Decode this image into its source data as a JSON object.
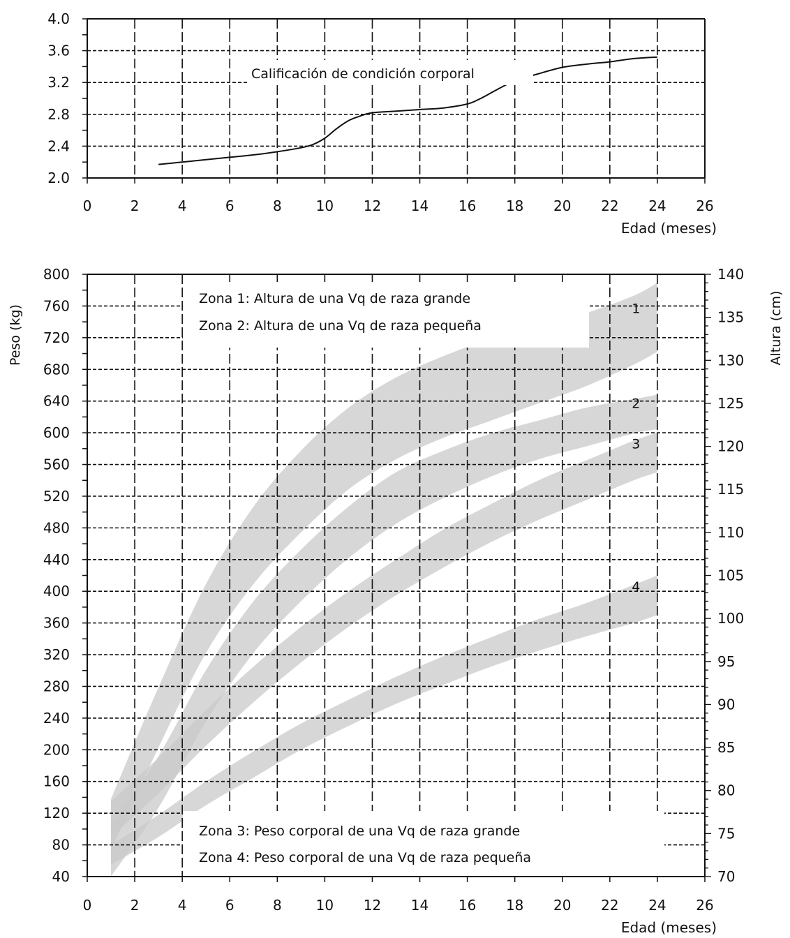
{
  "colors": {
    "axis": "#111111",
    "grid": "#111111",
    "line": "#111111",
    "band": "#c9c9c9"
  },
  "chart_data": [
    {
      "type": "line",
      "x_ticks": [
        "0",
        "2",
        "4",
        "6",
        "8",
        "10",
        "12",
        "14",
        "16",
        "18",
        "20",
        "22",
        "24",
        "26"
      ],
      "y_ticks": [
        "2.0",
        "2.4",
        "2.8",
        "3.2",
        "3.6",
        "4.0"
      ],
      "xlabel": "Edad (meses)",
      "ylabel": "",
      "xlim": [
        0,
        26
      ],
      "ylim": [
        2.0,
        4.0
      ],
      "grid": true,
      "annotations": [
        "Calificación de condición corporal"
      ],
      "series": [
        {
          "x": [
            3,
            4,
            5,
            6,
            7,
            8,
            9,
            9.5,
            10,
            10.5,
            11,
            11.5,
            12,
            13,
            14,
            15,
            16,
            16.5,
            17,
            17.5,
            18,
            19,
            20,
            21,
            22,
            23,
            24
          ],
          "y": [
            2.17,
            2.2,
            2.23,
            2.26,
            2.29,
            2.33,
            2.38,
            2.42,
            2.5,
            2.62,
            2.72,
            2.78,
            2.82,
            2.84,
            2.86,
            2.88,
            2.93,
            2.99,
            3.07,
            3.15,
            3.22,
            3.31,
            3.39,
            3.43,
            3.46,
            3.5,
            3.52
          ]
        }
      ]
    },
    {
      "type": "area",
      "x_ticks": [
        "0",
        "2",
        "4",
        "6",
        "8",
        "10",
        "12",
        "14",
        "16",
        "18",
        "20",
        "22",
        "24",
        "26"
      ],
      "y_ticks": [
        "40",
        "80",
        "120",
        "160",
        "200",
        "240",
        "280",
        "320",
        "360",
        "400",
        "440",
        "480",
        "520",
        "560",
        "600",
        "640",
        "680",
        "720",
        "760",
        "800"
      ],
      "y2_ticks": [
        "70",
        "75",
        "80",
        "85",
        "90",
        "95",
        "100",
        "105",
        "110",
        "115",
        "120",
        "125",
        "130",
        "135",
        "140"
      ],
      "xlabel": "Edad (meses)",
      "ylabel": "Peso (kg)",
      "y2label": "Altura (cm)",
      "xlim": [
        0,
        26
      ],
      "ylim": [
        40,
        800
      ],
      "y2lim": [
        70,
        140
      ],
      "grid": true,
      "legend": [
        "Zona 1: Altura de una Vq de raza grande",
        "Zona 2: Altura de una Vq de raza pequeña",
        "Zona 3: Peso corporal de una Vq de raza grande",
        "Zona 4: Peso corporal de una Vq de raza pequeña"
      ],
      "series": [
        {
          "name": "1",
          "axis": "right",
          "x": [
            1,
            3,
            5,
            7,
            9,
            11,
            13,
            15,
            17,
            19,
            21,
            23,
            24
          ],
          "low": [
            73,
            85,
            96,
            104,
            110,
            115,
            118.5,
            121,
            123,
            125,
            127,
            129.5,
            131
          ],
          "high": [
            79,
            92,
            104,
            113,
            119.5,
            124.5,
            128,
            130.5,
            132.5,
            134,
            135.5,
            137.5,
            139
          ]
        },
        {
          "name": "2",
          "axis": "right",
          "x": [
            1,
            3,
            5,
            7,
            9,
            11,
            13,
            15,
            17,
            19,
            21,
            23,
            24
          ],
          "low": [
            70,
            78,
            88,
            96,
            102,
            107,
            111,
            114,
            116.5,
            118.5,
            120,
            121.5,
            122
          ],
          "high": [
            76,
            84,
            94,
            102,
            108,
            113,
            117,
            119.5,
            121.5,
            123,
            124.5,
            125.5,
            126
          ]
        },
        {
          "name": "3",
          "axis": "left",
          "x": [
            1,
            3,
            5,
            7,
            9,
            11,
            13,
            15,
            17,
            19,
            21,
            23,
            24
          ],
          "low": [
            90,
            145,
            205,
            260,
            310,
            355,
            395,
            430,
            462,
            490,
            515,
            540,
            550
          ],
          "high": [
            135,
            190,
            250,
            305,
            355,
            400,
            440,
            478,
            510,
            540,
            565,
            590,
            600
          ]
        },
        {
          "name": "4",
          "axis": "left",
          "x": [
            1,
            3,
            5,
            7,
            9,
            11,
            13,
            15,
            17,
            19,
            21,
            23,
            24
          ],
          "low": [
            55,
            90,
            130,
            165,
            200,
            230,
            258,
            282,
            305,
            325,
            343,
            360,
            370
          ],
          "high": [
            80,
            118,
            160,
            198,
            233,
            263,
            292,
            318,
            342,
            365,
            385,
            408,
            420
          ]
        }
      ]
    }
  ]
}
